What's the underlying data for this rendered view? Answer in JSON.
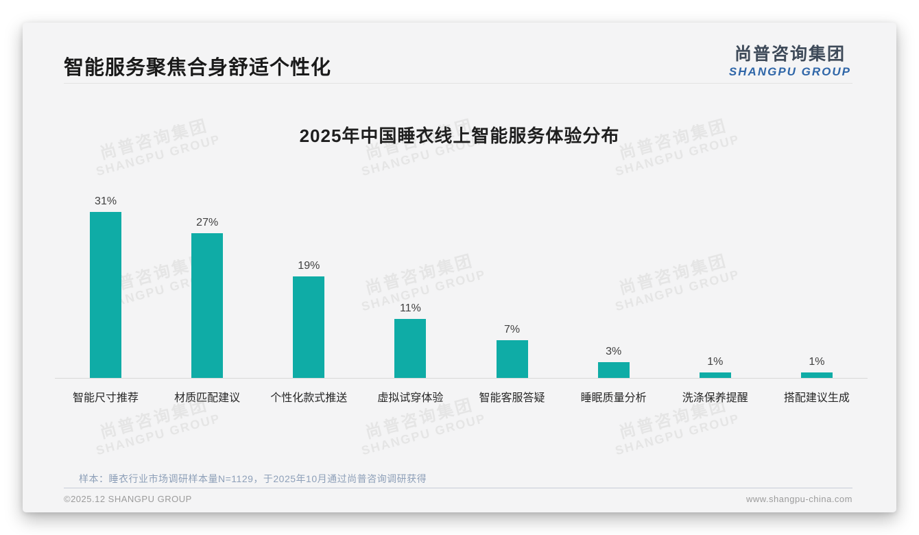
{
  "page": {
    "title": "智能服务聚焦合身舒适个性化",
    "logo": {
      "cn": "尚普咨询集团",
      "en": "SHANGPU GROUP"
    },
    "watermark": {
      "cn": "尚普咨询集团",
      "en": "SHANGPU GROUP"
    },
    "source_note": "样本：睡衣行业市场调研样本量N=1129，于2025年10月通过尚普咨询调研获得",
    "footer": {
      "copyright": "©2025.12 SHANGPU GROUP",
      "website": "www.shangpu-china.com"
    }
  },
  "colors": {
    "bar": "#0faca6",
    "card_bg": "#f4f4f5",
    "logo_cn": "#3e4a59",
    "logo_en": "#2f66a8",
    "source_text": "#8d9fb8",
    "watermark": "#e5e5e5"
  },
  "chart_data": {
    "type": "bar",
    "title": "2025年中国睡衣线上智能服务体验分布",
    "categories": [
      "智能尺寸推荐",
      "材质匹配建议",
      "个性化款式推送",
      "虚拟试穿体验",
      "智能客服答疑",
      "睡眠质量分析",
      "洗涤保养提醒",
      "搭配建议生成"
    ],
    "values": [
      31,
      27,
      19,
      11,
      7,
      3,
      1,
      1
    ],
    "value_labels": [
      "31%",
      "27%",
      "19%",
      "11%",
      "7%",
      "3%",
      "1%",
      "1%"
    ],
    "unit": "%",
    "xlabel": "",
    "ylabel": "",
    "ylim": [
      0,
      33
    ],
    "grid": false,
    "legend": false,
    "bar_color": "#0faca6"
  }
}
